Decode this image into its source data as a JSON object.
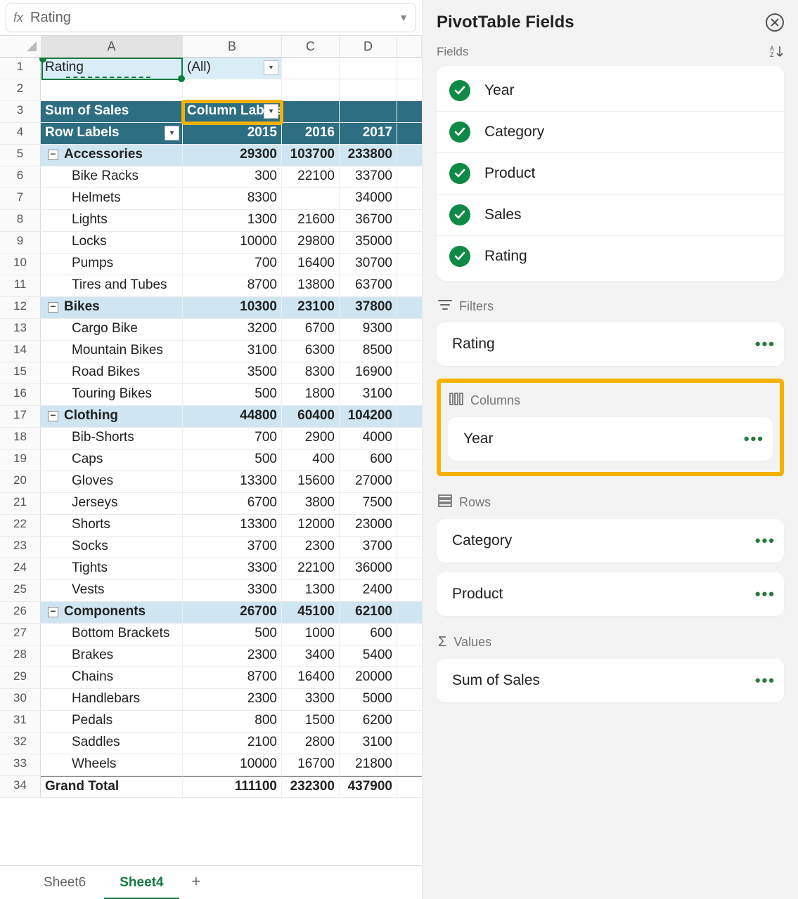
{
  "colors": {
    "header_bg": "#2e6e82",
    "cat_bg": "#cfe6f2",
    "filter_bg": "#d9edf7",
    "accent_green": "#0f7b3e",
    "check_green": "#0f8a46",
    "highlight_gold": "#f5b100",
    "text": "#222222"
  },
  "formula_bar": {
    "fx": "fx",
    "value": "Rating"
  },
  "columns": [
    "A",
    "B",
    "C",
    "D"
  ],
  "selected_cell": "A1",
  "rows": [
    {
      "n": 1,
      "type": "filter",
      "a": "Rating",
      "b": "(All)",
      "dd_b": true
    },
    {
      "n": 2,
      "type": "blank"
    },
    {
      "n": 3,
      "type": "hdr1",
      "a": "Sum of Sales",
      "b": "Column Labels",
      "dd_b": true
    },
    {
      "n": 4,
      "type": "hdr2",
      "a": "Row Labels",
      "dd_a": true,
      "b": "2015",
      "c": "2016",
      "d": "2017"
    },
    {
      "n": 5,
      "type": "cat",
      "a": "Accessories",
      "b": "29300",
      "c": "103700",
      "d": "233800"
    },
    {
      "n": 6,
      "type": "sub",
      "a": "Bike Racks",
      "b": "300",
      "c": "22100",
      "d": "33700"
    },
    {
      "n": 7,
      "type": "sub",
      "a": "Helmets",
      "b": "8300",
      "c": "",
      "d": "34000"
    },
    {
      "n": 8,
      "type": "sub",
      "a": "Lights",
      "b": "1300",
      "c": "21600",
      "d": "36700"
    },
    {
      "n": 9,
      "type": "sub",
      "a": "Locks",
      "b": "10000",
      "c": "29800",
      "d": "35000"
    },
    {
      "n": 10,
      "type": "sub",
      "a": "Pumps",
      "b": "700",
      "c": "16400",
      "d": "30700"
    },
    {
      "n": 11,
      "type": "sub",
      "a": "Tires and Tubes",
      "b": "8700",
      "c": "13800",
      "d": "63700"
    },
    {
      "n": 12,
      "type": "cat",
      "a": "Bikes",
      "b": "10300",
      "c": "23100",
      "d": "37800"
    },
    {
      "n": 13,
      "type": "sub",
      "a": "Cargo Bike",
      "b": "3200",
      "c": "6700",
      "d": "9300"
    },
    {
      "n": 14,
      "type": "sub",
      "a": "Mountain Bikes",
      "b": "3100",
      "c": "6300",
      "d": "8500"
    },
    {
      "n": 15,
      "type": "sub",
      "a": "Road Bikes",
      "b": "3500",
      "c": "8300",
      "d": "16900"
    },
    {
      "n": 16,
      "type": "sub",
      "a": "Touring Bikes",
      "b": "500",
      "c": "1800",
      "d": "3100"
    },
    {
      "n": 17,
      "type": "cat",
      "a": "Clothing",
      "b": "44800",
      "c": "60400",
      "d": "104200"
    },
    {
      "n": 18,
      "type": "sub",
      "a": "Bib-Shorts",
      "b": "700",
      "c": "2900",
      "d": "4000"
    },
    {
      "n": 19,
      "type": "sub",
      "a": "Caps",
      "b": "500",
      "c": "400",
      "d": "600"
    },
    {
      "n": 20,
      "type": "sub",
      "a": "Gloves",
      "b": "13300",
      "c": "15600",
      "d": "27000"
    },
    {
      "n": 21,
      "type": "sub",
      "a": "Jerseys",
      "b": "6700",
      "c": "3800",
      "d": "7500"
    },
    {
      "n": 22,
      "type": "sub",
      "a": "Shorts",
      "b": "13300",
      "c": "12000",
      "d": "23000"
    },
    {
      "n": 23,
      "type": "sub",
      "a": "Socks",
      "b": "3700",
      "c": "2300",
      "d": "3700"
    },
    {
      "n": 24,
      "type": "sub",
      "a": "Tights",
      "b": "3300",
      "c": "22100",
      "d": "36000"
    },
    {
      "n": 25,
      "type": "sub",
      "a": "Vests",
      "b": "3300",
      "c": "1300",
      "d": "2400"
    },
    {
      "n": 26,
      "type": "cat",
      "a": "Components",
      "b": "26700",
      "c": "45100",
      "d": "62100"
    },
    {
      "n": 27,
      "type": "sub",
      "a": "Bottom Brackets",
      "b": "500",
      "c": "1000",
      "d": "600"
    },
    {
      "n": 28,
      "type": "sub",
      "a": "Brakes",
      "b": "2300",
      "c": "3400",
      "d": "5400"
    },
    {
      "n": 29,
      "type": "sub",
      "a": "Chains",
      "b": "8700",
      "c": "16400",
      "d": "20000"
    },
    {
      "n": 30,
      "type": "sub",
      "a": "Handlebars",
      "b": "2300",
      "c": "3300",
      "d": "5000"
    },
    {
      "n": 31,
      "type": "sub",
      "a": "Pedals",
      "b": "800",
      "c": "1500",
      "d": "6200"
    },
    {
      "n": 32,
      "type": "sub",
      "a": "Saddles",
      "b": "2100",
      "c": "2800",
      "d": "3100"
    },
    {
      "n": 33,
      "type": "sub",
      "a": "Wheels",
      "b": "10000",
      "c": "16700",
      "d": "21800"
    },
    {
      "n": 34,
      "type": "gt",
      "a": "Grand Total",
      "b": "111100",
      "c": "232300",
      "d": "437900"
    }
  ],
  "sheet_tabs": {
    "inactive": "Sheet6",
    "active": "Sheet4"
  },
  "panel": {
    "title": "PivotTable Fields",
    "fields_label": "Fields",
    "fields": [
      "Year",
      "Category",
      "Product",
      "Sales",
      "Rating"
    ],
    "sections": {
      "filters": {
        "label": "Filters",
        "items": [
          "Rating"
        ]
      },
      "columns": {
        "label": "Columns",
        "items": [
          "Year"
        ],
        "highlighted": true
      },
      "rows": {
        "label": "Rows",
        "items": [
          "Category",
          "Product"
        ]
      },
      "values": {
        "label": "Values",
        "items": [
          "Sum of Sales"
        ]
      }
    }
  }
}
